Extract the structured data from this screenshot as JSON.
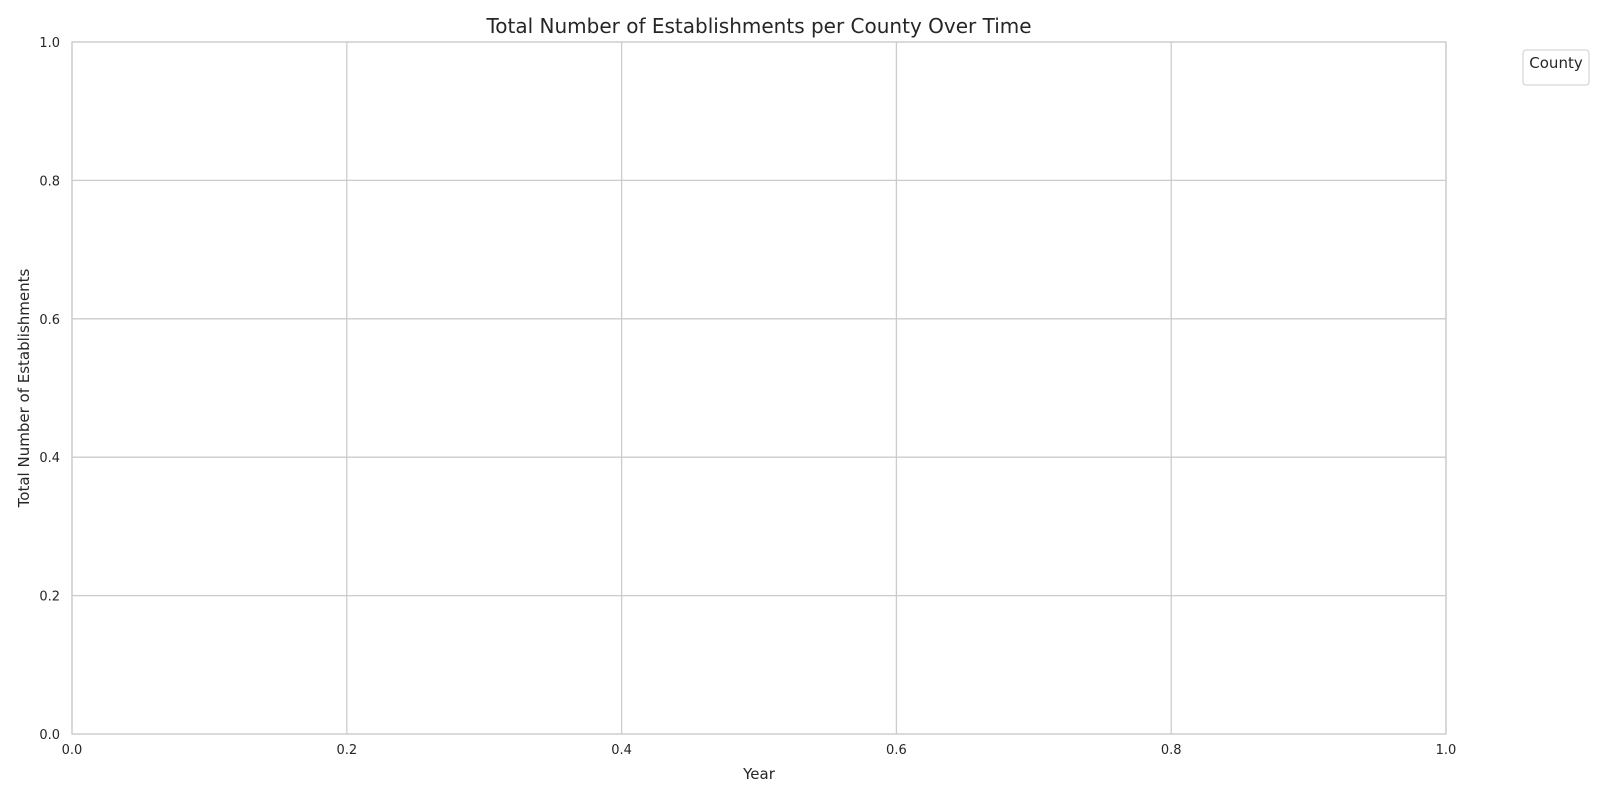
{
  "chart_data": {
    "type": "line",
    "title": "Total Number of Establishments per County Over Time",
    "xlabel": "Year",
    "ylabel": "Total Number of Establishments",
    "xlim": [
      0.0,
      1.0
    ],
    "ylim": [
      0.0,
      1.0
    ],
    "x_ticks": [
      "0.0",
      "0.2",
      "0.4",
      "0.6",
      "0.8",
      "1.0"
    ],
    "y_ticks": [
      "0.0",
      "0.2",
      "0.4",
      "0.6",
      "0.8",
      "1.0"
    ],
    "grid": true,
    "series": [],
    "legend": {
      "title": "County",
      "placement": "outside-top-right",
      "entries": []
    }
  },
  "colors": {
    "background": "#ffffff",
    "grid": "#cccccc",
    "spine": "#cccccc",
    "text": "#262626"
  }
}
